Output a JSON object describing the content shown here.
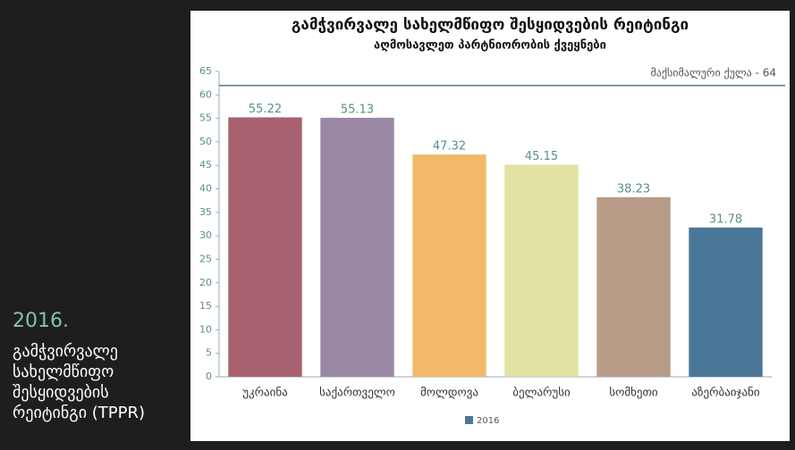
{
  "slide": {
    "year": "2016.",
    "title_lines": [
      "გამჭვირვალე",
      "სახელმწიფო",
      "შესყიდვების",
      "რეიტინგი (TPPR)"
    ]
  },
  "chart_data": {
    "type": "bar",
    "title": "გამჭვირვალე სახელმწიფო შესყიდვების რეიტინგი",
    "subtitle": "აღმოსავლეთ პარტნიორობის ქვეყნები",
    "categories": [
      "უკრაინა",
      "საქართველო",
      "მოლდოვა",
      "ბელარუსი",
      "სომხეთი",
      "აზერბაიჯანი"
    ],
    "series": [
      {
        "name": "2016",
        "color": "#4a7797",
        "values": [
          55.22,
          55.13,
          47.32,
          45.15,
          38.23,
          31.78
        ]
      }
    ],
    "bar_colors": [
      "#a8616f",
      "#9a88a4",
      "#f2b96a",
      "#e2e2a2",
      "#b89c88",
      "#4a7797"
    ],
    "ylim": [
      0,
      65
    ],
    "yticks": [
      0,
      5,
      10,
      15,
      20,
      25,
      30,
      35,
      40,
      45,
      50,
      55,
      60,
      65
    ],
    "reference_line": {
      "value": 62,
      "label": "მაქსიმალური ქულა - 64"
    },
    "legend": "bottom"
  }
}
